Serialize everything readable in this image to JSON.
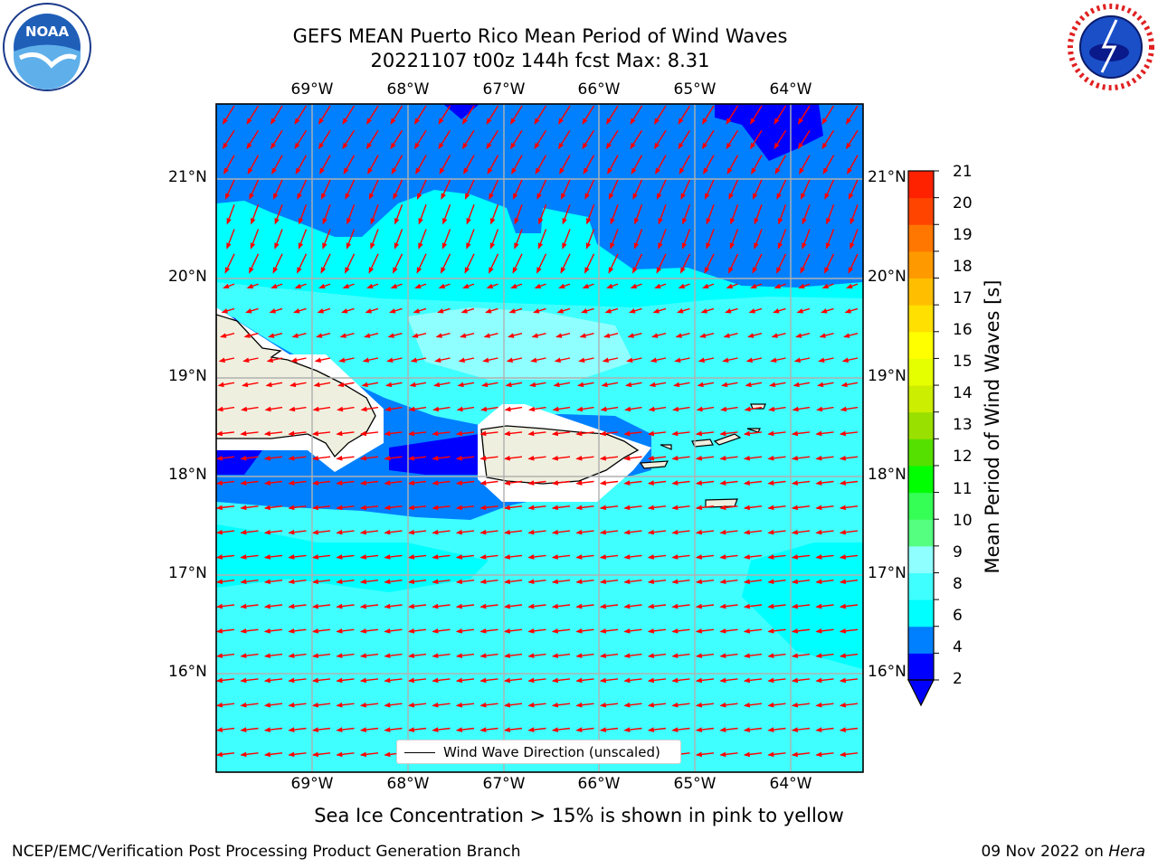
{
  "header": {
    "title_line1": "GEFS MEAN Puerto Rico Mean Period of Wind Waves",
    "title_line2": "20221107 t00z 144h fcst   Max: 8.31"
  },
  "logos": {
    "left": "noaa-logo",
    "right": "national-weather-service-logo",
    "left_text": "NOAA",
    "right_text": "NATIONAL WEATHER SERVICE"
  },
  "map": {
    "lon_labels": [
      "69°W",
      "68°W",
      "67°W",
      "66°W",
      "65°W",
      "64°W"
    ],
    "lat_labels": [
      "21°N",
      "20°N",
      "19°N",
      "18°N",
      "17°N",
      "16°N"
    ],
    "legend": "Wind Wave Direction (unscaled)",
    "arrow_color": "#ff0000"
  },
  "colorbar": {
    "label": "Mean Period of Wind Waves [s]",
    "ticks": [
      "21",
      "20",
      "19",
      "18",
      "17",
      "16",
      "15",
      "14",
      "13",
      "12",
      "11",
      "10",
      "9",
      "8",
      "6",
      "4",
      "2"
    ],
    "colors": [
      "#0000ff",
      "#0080ff",
      "#00ffff",
      "#40ffff",
      "#90ffff",
      "#55ff80",
      "#35ff55",
      "#00ff00",
      "#55e000",
      "#99e000",
      "#ccee00",
      "#e6ff00",
      "#ffff00",
      "#ffe000",
      "#ffbf00",
      "#ff9900",
      "#ff7700",
      "#ff4400",
      "#ff2200"
    ]
  },
  "footer": {
    "subtitle": "Sea Ice Concentration > 15% is shown in pink to yellow",
    "left": "NCEP/EMC/Verification Post Processing Product Generation Branch",
    "right_date": "09 Nov 2022 on ",
    "right_host": "Hera"
  }
}
